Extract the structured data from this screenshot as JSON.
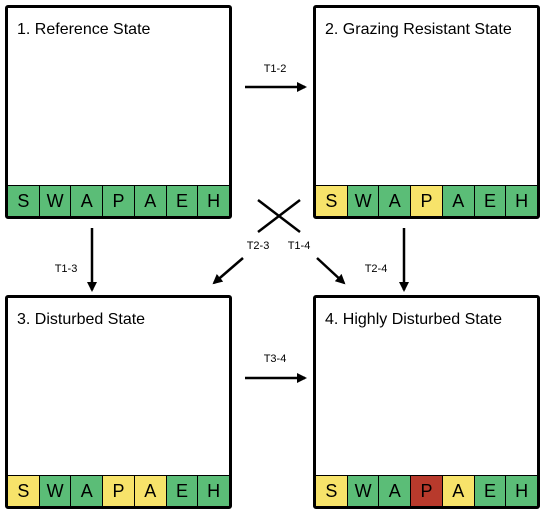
{
  "states": [
    {
      "title": "1. Reference State",
      "cells": [
        {
          "letter": "S",
          "color": "#5bbd77"
        },
        {
          "letter": "W",
          "color": "#5bbd77"
        },
        {
          "letter": "A",
          "color": "#5bbd77"
        },
        {
          "letter": "P",
          "color": "#5bbd77"
        },
        {
          "letter": "A",
          "color": "#5bbd77"
        },
        {
          "letter": "E",
          "color": "#5bbd77"
        },
        {
          "letter": "H",
          "color": "#5bbd77"
        }
      ]
    },
    {
      "title": "2. Grazing Resistant State",
      "cells": [
        {
          "letter": "S",
          "color": "#f7e36a"
        },
        {
          "letter": "W",
          "color": "#5bbd77"
        },
        {
          "letter": "A",
          "color": "#5bbd77"
        },
        {
          "letter": "P",
          "color": "#f7e36a"
        },
        {
          "letter": "A",
          "color": "#5bbd77"
        },
        {
          "letter": "E",
          "color": "#5bbd77"
        },
        {
          "letter": "H",
          "color": "#5bbd77"
        }
      ]
    },
    {
      "title": "3. Disturbed State",
      "cells": [
        {
          "letter": "S",
          "color": "#f7e36a"
        },
        {
          "letter": "W",
          "color": "#5bbd77"
        },
        {
          "letter": "A",
          "color": "#5bbd77"
        },
        {
          "letter": "P",
          "color": "#f7e36a"
        },
        {
          "letter": "A",
          "color": "#f7e36a"
        },
        {
          "letter": "E",
          "color": "#5bbd77"
        },
        {
          "letter": "H",
          "color": "#5bbd77"
        }
      ]
    },
    {
      "title": "4. Highly Disturbed State",
      "cells": [
        {
          "letter": "S",
          "color": "#f7e36a"
        },
        {
          "letter": "W",
          "color": "#5bbd77"
        },
        {
          "letter": "A",
          "color": "#5bbd77"
        },
        {
          "letter": "P",
          "color": "#b83a2c"
        },
        {
          "letter": "A",
          "color": "#f7e36a"
        },
        {
          "letter": "E",
          "color": "#5bbd77"
        },
        {
          "letter": "H",
          "color": "#5bbd77"
        }
      ]
    }
  ],
  "transitions": [
    {
      "label": "T1-2"
    },
    {
      "label": "T1-3"
    },
    {
      "label": "T2-4"
    },
    {
      "label": "T3-4"
    },
    {
      "label": "T2-3"
    },
    {
      "label": "T1-4"
    }
  ]
}
